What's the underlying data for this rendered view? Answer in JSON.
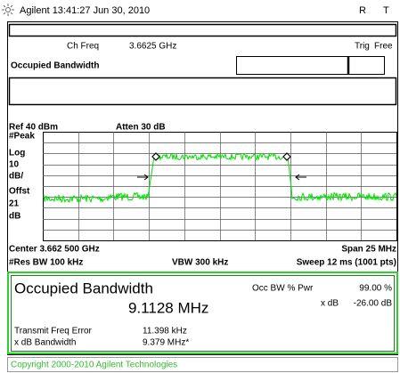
{
  "header": {
    "status": "Agilent 13:41:27 Jun 30, 2010",
    "indicators": [
      "R",
      "T"
    ]
  },
  "settings": {
    "ch_freq_label": "Ch Freq",
    "ch_freq": "3.6625 GHz",
    "trig_label": "Trig",
    "trig": "Free",
    "mode": "Occupied Bandwidth"
  },
  "display": {
    "ref": "Ref 40 dBm",
    "atten": "Atten 30 dB",
    "scale_labels": [
      "#Peak",
      "Log",
      "10",
      "dB/",
      "Offst",
      "21",
      "dB"
    ],
    "center": "Center 3.662 500 GHz",
    "span": "Span 25 MHz",
    "res_bw": "#Res BW 100 kHz",
    "vbw": "VBW 300 kHz",
    "sweep": "Sweep 12 ms (1001 pts)"
  },
  "results": {
    "title": "Occupied Bandwidth",
    "value": "9.1128 MHz",
    "occ_label": "Occ BW % Pwr",
    "occ_value": "99.00 %",
    "xdb_label": "x dB",
    "xdb_value": "-26.00 dB",
    "rows": [
      [
        "Transmit Freq Error",
        "11.398 kHz"
      ],
      [
        "x dB Bandwidth",
        "9.379 MHz*"
      ]
    ]
  },
  "footer": "Copyright 2000-2010 Agilent Technologies"
}
